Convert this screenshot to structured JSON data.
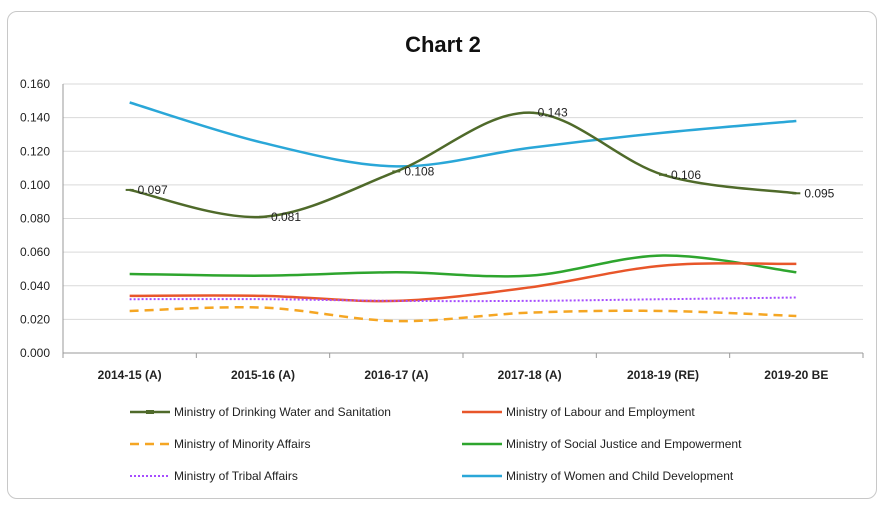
{
  "chart_data": {
    "type": "line",
    "title": "Chart 2",
    "xlabel": "",
    "ylabel": "",
    "categories": [
      "2014-15 (A)",
      "2015-16 (A)",
      "2016-17 (A)",
      "2017-18 (A)",
      "2018-19 (RE)",
      "2019-20 BE"
    ],
    "ylim": [
      0,
      0.16
    ],
    "yticks": [
      "0.000",
      "0.020",
      "0.040",
      "0.060",
      "0.080",
      "0.100",
      "0.120",
      "0.140",
      "0.160"
    ],
    "grid": true,
    "legend_position": "bottom",
    "series": [
      {
        "name": "Ministry of Drinking Water and Sanitation",
        "color": "#4f6a2a",
        "style": "solid-marker",
        "values": [
          0.097,
          0.081,
          0.108,
          0.143,
          0.106,
          0.095
        ],
        "labels": [
          "0.097",
          "0.081",
          "0.108",
          "0.143",
          "0.106",
          "0.095"
        ]
      },
      {
        "name": "Ministry of Labour and Employment",
        "color": "#e8562a",
        "style": "solid",
        "values": [
          0.034,
          0.034,
          0.031,
          0.039,
          0.052,
          0.053
        ]
      },
      {
        "name": "Ministry of Minority Affairs",
        "color": "#f5a623",
        "style": "dashed",
        "values": [
          0.025,
          0.027,
          0.019,
          0.024,
          0.025,
          0.022
        ]
      },
      {
        "name": "Ministry of Social Justice and Empowerment",
        "color": "#2ea52e",
        "style": "solid",
        "values": [
          0.047,
          0.046,
          0.048,
          0.046,
          0.058,
          0.048
        ]
      },
      {
        "name": "Ministry of Tribal Affairs",
        "color": "#a64dff",
        "style": "dotted",
        "values": [
          0.032,
          0.032,
          0.031,
          0.031,
          0.032,
          0.033
        ]
      },
      {
        "name": "Ministry of Women and Child Development",
        "color": "#2aa7d8",
        "style": "solid",
        "values": [
          0.149,
          0.125,
          0.111,
          0.122,
          0.131,
          0.138
        ]
      }
    ]
  }
}
